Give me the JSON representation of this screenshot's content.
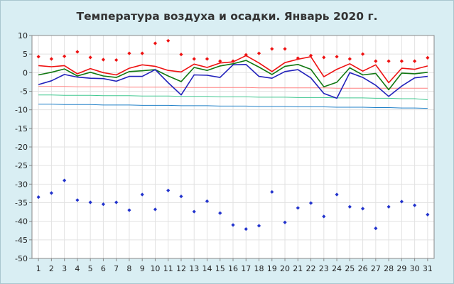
{
  "chart_data": {
    "type": "line",
    "title": "Температура воздуха и осадки. Январь 2020 г.",
    "x": [
      1,
      2,
      3,
      4,
      5,
      6,
      7,
      8,
      9,
      10,
      11,
      12,
      13,
      14,
      15,
      16,
      17,
      18,
      19,
      20,
      21,
      22,
      23,
      24,
      25,
      26,
      27,
      28,
      29,
      30,
      31
    ],
    "ylim": [
      -50,
      10
    ],
    "yticks": [
      10,
      5,
      0,
      -5,
      -10,
      -15,
      -20,
      -25,
      -30,
      -35,
      -40,
      -45,
      -50
    ],
    "grid": true,
    "series": [
      {
        "key": "norm_red",
        "style": "line",
        "color": "#ff8080",
        "values": [
          -3.7,
          -3.7,
          -3.7,
          -3.8,
          -3.8,
          -3.8,
          -3.8,
          -3.9,
          -3.9,
          -3.9,
          -3.9,
          -4.0,
          -4.0,
          -4.0,
          -4.0,
          -4.0,
          -4.0,
          -4.1,
          -4.1,
          -4.1,
          -4.1,
          -4.1,
          -4.1,
          -4.2,
          -4.2,
          -4.2,
          -4.2,
          -4.2,
          -4.2,
          -4.2,
          -4.2
        ]
      },
      {
        "key": "norm_green",
        "style": "line",
        "color": "#40c890",
        "values": [
          -6.0,
          -6.0,
          -6.1,
          -6.1,
          -6.1,
          -6.2,
          -6.2,
          -6.2,
          -6.3,
          -6.3,
          -6.3,
          -6.4,
          -6.4,
          -6.4,
          -6.5,
          -6.5,
          -6.5,
          -6.6,
          -6.6,
          -6.6,
          -6.7,
          -6.7,
          -6.7,
          -6.8,
          -6.8,
          -6.8,
          -6.9,
          -6.9,
          -7.0,
          -7.0,
          -7.3
        ]
      },
      {
        "key": "norm_blue",
        "style": "line",
        "color": "#2080c8",
        "values": [
          -8.5,
          -8.5,
          -8.6,
          -8.6,
          -8.6,
          -8.7,
          -8.7,
          -8.7,
          -8.8,
          -8.8,
          -8.8,
          -8.9,
          -8.9,
          -8.9,
          -9.0,
          -9.0,
          -9.0,
          -9.1,
          -9.1,
          -9.1,
          -9.2,
          -9.2,
          -9.2,
          -9.3,
          -9.3,
          -9.3,
          -9.4,
          -9.4,
          -9.5,
          -9.5,
          -9.6
        ]
      },
      {
        "key": "max",
        "style": "line",
        "color": "#ee1111",
        "values": [
          1.9,
          1.6,
          1.9,
          -0.3,
          1.1,
          0.0,
          -0.6,
          1.2,
          2.1,
          1.7,
          0.6,
          0.2,
          2.3,
          1.4,
          2.6,
          2.9,
          4.6,
          2.6,
          0.3,
          2.7,
          3.6,
          4.3,
          -1.1,
          0.9,
          2.4,
          0.4,
          2.1,
          -2.7,
          1.2,
          0.9,
          1.8
        ]
      },
      {
        "key": "mean",
        "style": "line",
        "color": "#117711",
        "values": [
          -0.6,
          0.1,
          1.0,
          -0.9,
          0.1,
          -0.9,
          -1.3,
          0.3,
          0.5,
          0.8,
          -0.9,
          -2.4,
          1.4,
          0.6,
          1.8,
          2.4,
          3.3,
          1.5,
          -0.5,
          1.7,
          2.2,
          0.9,
          -3.8,
          -2.6,
          1.3,
          -0.6,
          -0.2,
          -4.6,
          -0.1,
          -0.3,
          0.1
        ]
      },
      {
        "key": "min",
        "style": "line",
        "color": "#2222bb",
        "values": [
          -3.2,
          -2.2,
          -0.5,
          -1.2,
          -1.5,
          -1.6,
          -2.3,
          -1.0,
          -1.0,
          0.8,
          -2.7,
          -6.0,
          -0.6,
          -0.7,
          -1.3,
          2.1,
          2.2,
          -1.0,
          -1.5,
          0.3,
          0.8,
          -1.4,
          -5.6,
          -6.9,
          0.0,
          -1.3,
          -3.4,
          -6.4,
          -3.6,
          -1.4,
          -1.0
        ]
      },
      {
        "key": "abs_max",
        "style": "points",
        "color": "#ee1111",
        "values": [
          4.3,
          3.7,
          4.4,
          5.6,
          4.1,
          3.5,
          3.4,
          5.2,
          5.2,
          7.9,
          8.6,
          4.9,
          3.7,
          3.7,
          3.1,
          3.1,
          4.8,
          5.2,
          6.4,
          6.4,
          3.9,
          4.6,
          4.1,
          4.3,
          3.7,
          5.0,
          3.1,
          3.1,
          3.1,
          3.1,
          4.0
        ]
      },
      {
        "key": "abs_min",
        "style": "points",
        "color": "#2233cc",
        "values": [
          -33.5,
          -32.4,
          -29.0,
          -34.3,
          -34.9,
          -35.4,
          -34.9,
          -37.0,
          -32.8,
          -36.8,
          -31.7,
          -33.3,
          -37.4,
          -34.6,
          -37.8,
          -41.0,
          -42.1,
          -41.2,
          -32.1,
          -40.3,
          -36.4,
          -35.1,
          -38.7,
          -32.8,
          -36.1,
          -36.6,
          -41.9,
          -36.1,
          -34.7,
          -35.7,
          -38.2
        ]
      }
    ]
  }
}
